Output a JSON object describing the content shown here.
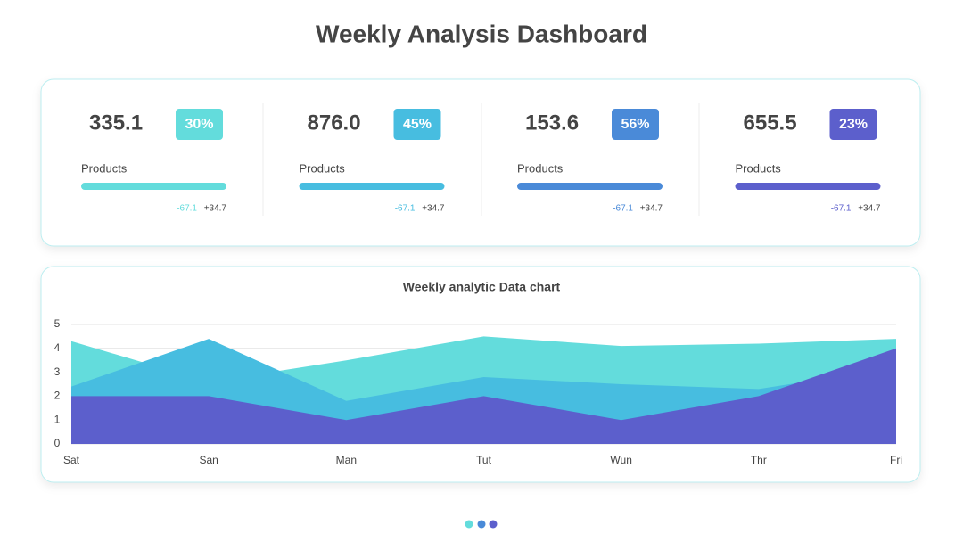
{
  "title": "Weekly Analysis Dashboard",
  "cards": [
    {
      "value": "335.1",
      "badge": "30%",
      "label": "Products",
      "down": "-67.1",
      "up": "+34.7",
      "color": "#63dcdc"
    },
    {
      "value": "876.0",
      "badge": "45%",
      "label": "Products",
      "down": "-67.1",
      "up": "+34.7",
      "color": "#47bde0"
    },
    {
      "value": "153.6",
      "badge": "56%",
      "label": "Products",
      "down": "-67.1",
      "up": "+34.7",
      "color": "#4a8ad8"
    },
    {
      "value": "655.5",
      "badge": "23%",
      "label": "Products",
      "down": "-67.1",
      "up": "+34.7",
      "color": "#5c5fcc"
    }
  ],
  "chart_data": {
    "type": "area",
    "title": "Weekly analytic Data chart",
    "categories": [
      "Sat",
      "San",
      "Man",
      "Tut",
      "Wun",
      "Thr",
      "Fri"
    ],
    "series": [
      {
        "color": "#63dcdc",
        "values": [
          4.3,
          2.6,
          3.5,
          4.5,
          4.1,
          4.2,
          4.4
        ]
      },
      {
        "color": "#47bde0",
        "values": [
          2.4,
          4.4,
          1.8,
          2.8,
          2.5,
          2.3,
          3.2
        ]
      },
      {
        "color": "#5c5fcc",
        "values": [
          2,
          2,
          1,
          2,
          1,
          2,
          4
        ]
      }
    ],
    "ylim": [
      0,
      5
    ],
    "yticks": [
      0,
      1,
      2,
      3,
      4,
      5
    ],
    "grid": true
  }
}
